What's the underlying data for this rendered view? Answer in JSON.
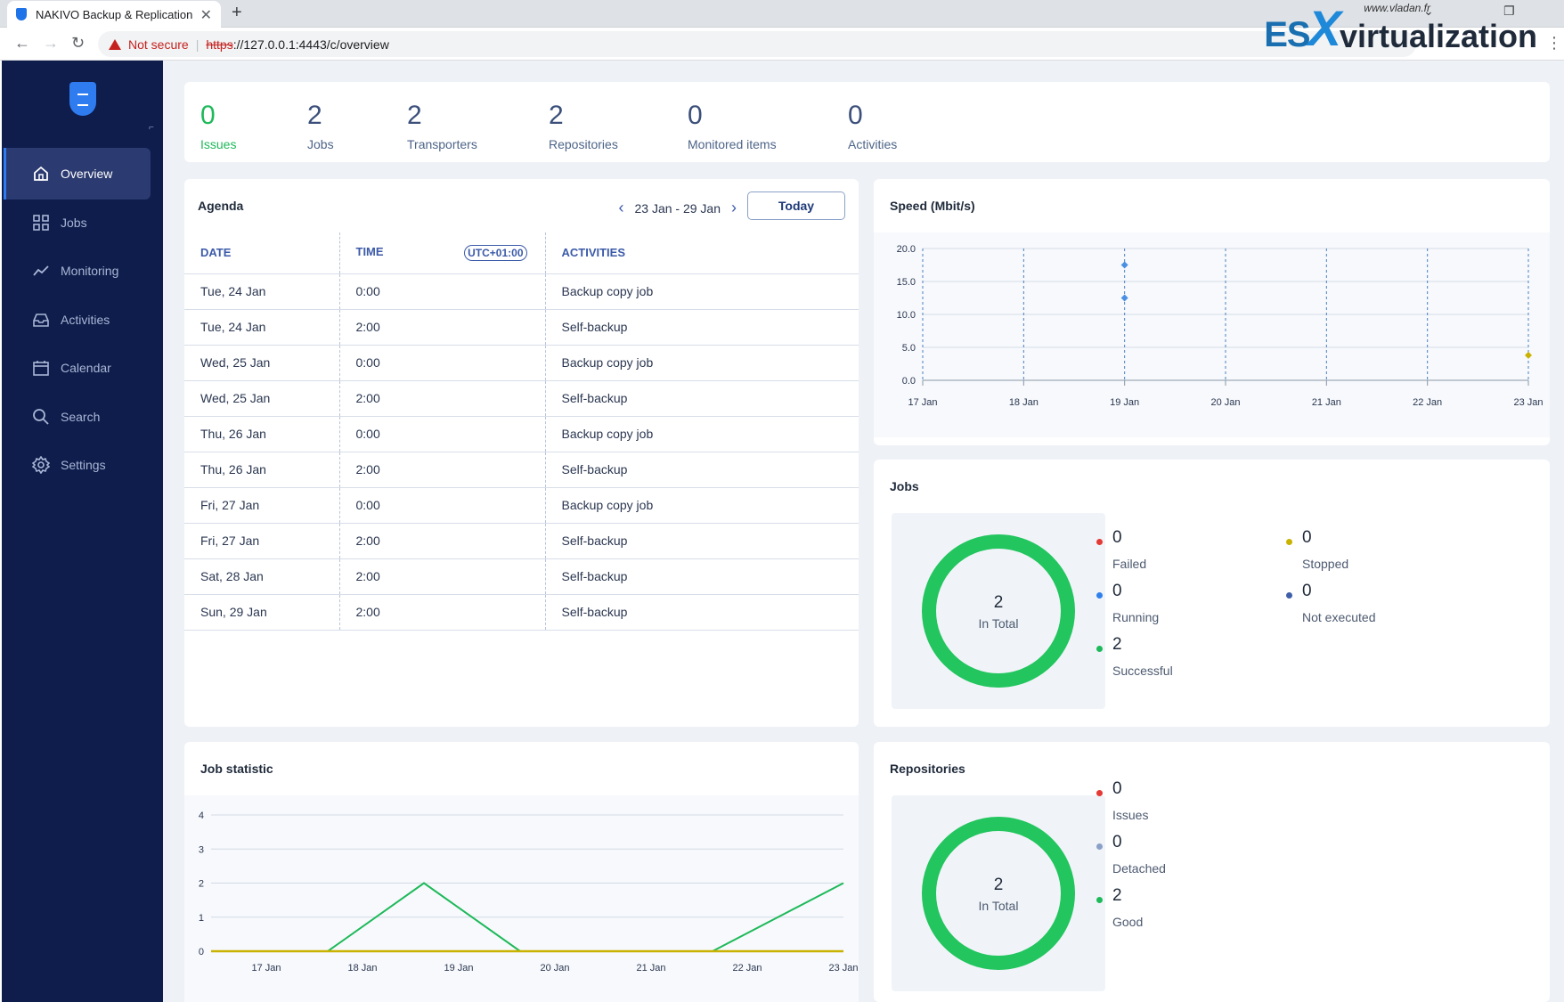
{
  "browser": {
    "tab_title": "NAKIVO Backup & Replication",
    "not_secure": "Not secure",
    "url_scheme": "https",
    "url_rest": "://127.0.0.1:4443/c/overview"
  },
  "watermark": {
    "site": "www.vladan.fr",
    "es": "ES",
    "x": "X",
    "rest": "virtualization"
  },
  "sidebar": {
    "items": [
      {
        "label": "Overview",
        "icon": "home-icon",
        "active": true
      },
      {
        "label": "Jobs",
        "icon": "grid-icon"
      },
      {
        "label": "Monitoring",
        "icon": "trend-icon"
      },
      {
        "label": "Activities",
        "icon": "inbox-icon"
      },
      {
        "label": "Calendar",
        "icon": "calendar-icon"
      },
      {
        "label": "Search",
        "icon": "search-icon"
      },
      {
        "label": "Settings",
        "icon": "gear-icon"
      }
    ]
  },
  "summary": [
    {
      "value": "0",
      "label": "Issues"
    },
    {
      "value": "2",
      "label": "Jobs"
    },
    {
      "value": "2",
      "label": "Transporters"
    },
    {
      "value": "2",
      "label": "Repositories"
    },
    {
      "value": "0",
      "label": "Monitored items"
    },
    {
      "value": "0",
      "label": "Activities"
    }
  ],
  "agenda": {
    "title": "Agenda",
    "range": "23 Jan - 29 Jan",
    "today": "Today",
    "headers": {
      "date": "DATE",
      "time": "TIME",
      "tz": "UTC+01:00",
      "activities": "ACTIVITIES"
    },
    "rows": [
      {
        "date": "Tue, 24 Jan",
        "time": "0:00",
        "activity": "Backup copy job"
      },
      {
        "date": "Tue, 24 Jan",
        "time": "2:00",
        "activity": "Self-backup"
      },
      {
        "date": "Wed, 25 Jan",
        "time": "0:00",
        "activity": "Backup copy job"
      },
      {
        "date": "Wed, 25 Jan",
        "time": "2:00",
        "activity": "Self-backup"
      },
      {
        "date": "Thu, 26 Jan",
        "time": "0:00",
        "activity": "Backup copy job"
      },
      {
        "date": "Thu, 26 Jan",
        "time": "2:00",
        "activity": "Self-backup"
      },
      {
        "date": "Fri, 27 Jan",
        "time": "0:00",
        "activity": "Backup copy job"
      },
      {
        "date": "Fri, 27 Jan",
        "time": "2:00",
        "activity": "Self-backup"
      },
      {
        "date": "Sat, 28 Jan",
        "time": "2:00",
        "activity": "Self-backup"
      },
      {
        "date": "Sun, 29 Jan",
        "time": "2:00",
        "activity": "Self-backup"
      }
    ]
  },
  "speed": {
    "title": "Speed (Mbit/s)"
  },
  "jobs": {
    "title": "Jobs",
    "total": "2",
    "total_label": "In Total",
    "legend": [
      {
        "value": "0",
        "label": "Failed",
        "color": "#e53935"
      },
      {
        "value": "0",
        "label": "Stopped",
        "color": "#c9b200"
      },
      {
        "value": "0",
        "label": "Running",
        "color": "#2f80ed"
      },
      {
        "value": "0",
        "label": "Not executed",
        "color": "#3f5fa8"
      },
      {
        "value": "2",
        "label": "Successful",
        "color": "#1eb95a"
      }
    ]
  },
  "job_statistic": {
    "title": "Job statistic"
  },
  "repositories": {
    "title": "Repositories",
    "total": "2",
    "total_label": "In Total",
    "legend": [
      {
        "value": "0",
        "label": "Issues",
        "color": "#e53935"
      },
      {
        "value": "0",
        "label": "Detached",
        "color": "#8aa0c8"
      },
      {
        "value": "2",
        "label": "Good",
        "color": "#1eb95a"
      }
    ]
  },
  "chart_data": [
    {
      "type": "scatter",
      "title": "Speed (Mbit/s)",
      "x": [
        "17 Jan",
        "18 Jan",
        "19 Jan",
        "20 Jan",
        "21 Jan",
        "22 Jan",
        "23 Jan"
      ],
      "ylim": [
        0,
        20
      ],
      "yticks": [
        "0.0",
        "5.0",
        "10.0",
        "15.0",
        "20.0"
      ],
      "series": [
        {
          "points": [
            {
              "x": "19 Jan",
              "y": 17.5
            },
            {
              "x": "19 Jan",
              "y": 12.5
            }
          ],
          "color": "#4a90e2"
        },
        {
          "points": [
            {
              "x": "23 Jan",
              "y": 3.8
            }
          ],
          "color": "#c9b200"
        }
      ],
      "grid": true
    },
    {
      "type": "line",
      "title": "Job statistic",
      "x": [
        "17 Jan",
        "18 Jan",
        "19 Jan",
        "20 Jan",
        "21 Jan",
        "22 Jan",
        "23 Jan"
      ],
      "ylim": [
        0,
        4
      ],
      "yticks": [
        "0",
        "1",
        "2",
        "3",
        "4"
      ],
      "series": [
        {
          "values": [
            0,
            0,
            2,
            0,
            0,
            0,
            2
          ],
          "color": "#1eb95a"
        },
        {
          "values": [
            0,
            0,
            0,
            0,
            0,
            0,
            0
          ],
          "color": "#c9b200"
        }
      ],
      "grid": true
    }
  ]
}
